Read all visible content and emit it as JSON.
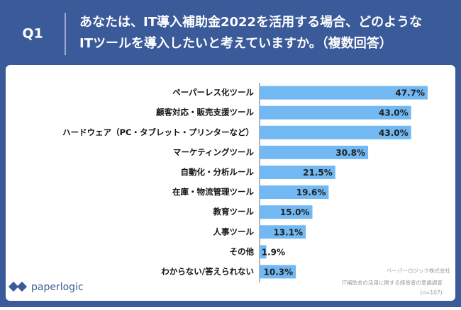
{
  "chart_data": {
    "type": "bar",
    "orientation": "horizontal",
    "question_number": "Q1",
    "title_lines": [
      "あなたは、IT導入補助金2022を活用する場合、どのような",
      "ITツールを導入したいと考えていますか。（複数回答）"
    ],
    "categories": [
      "ペーパーレス化ツール",
      "顧客対応・販売支援ツール",
      "ハードウェア（PC・タブレット・プリンターなど）",
      "マーケティングツール",
      "自動化・分析ルール",
      "在庫・物流管理ツール",
      "教育ツール",
      "人事ツール",
      "その他",
      "わからない/答えられない"
    ],
    "values": [
      47.7,
      43.0,
      43.0,
      30.8,
      21.5,
      19.6,
      15.0,
      13.1,
      1.9,
      10.3
    ],
    "value_labels": [
      "47.7%",
      "43.0%",
      "43.0%",
      "30.8%",
      "21.5%",
      "19.6%",
      "15.0%",
      "13.1%",
      "1.9%",
      "10.3%"
    ],
    "color": "#72b8f2",
    "source_lines": [
      "ペーパーロジック株式会社",
      "IT補助金の活用に関する経営者の意識調査",
      "(n=107)"
    ],
    "logo": "paperlogic"
  }
}
